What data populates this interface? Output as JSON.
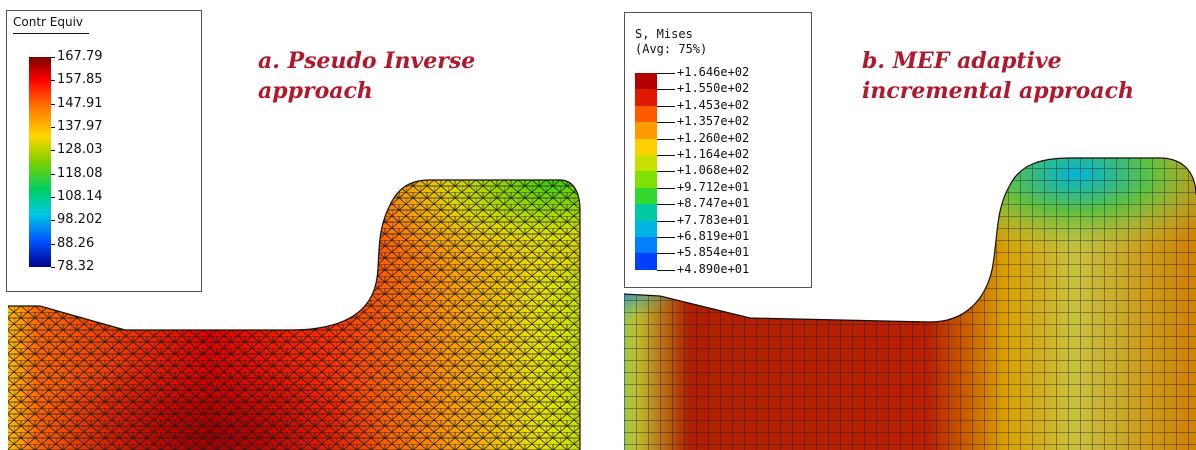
{
  "panel_a": {
    "caption_line1": "a. Pseudo Inverse",
    "caption_line2": "approach",
    "legend_title": "Contr Equiv",
    "legend_ticks": [
      "167.79",
      "157.85",
      "147.91",
      "137.97",
      "128.03",
      "118.08",
      "108.14",
      "98.202",
      "88.26",
      "78.32"
    ],
    "colormap": [
      "#8b0000",
      "#ff0000",
      "#ff7f00",
      "#ffd700",
      "#9acd32",
      "#00d000",
      "#00c8c8",
      "#0064ff",
      "#0000ff",
      "#00008b"
    ]
  },
  "panel_b": {
    "caption_line1": "b. MEF adaptive",
    "caption_line2": "incremental approach",
    "legend_title_line1": "S, Mises",
    "legend_title_line2": "(Avg: 75%)",
    "legend_ticks": [
      "+1.646e+02",
      "+1.550e+02",
      "+1.453e+02",
      "+1.357e+02",
      "+1.260e+02",
      "+1.164e+02",
      "+1.068e+02",
      "+9.712e+01",
      "+8.747e+01",
      "+7.783e+01",
      "+6.819e+01",
      "+5.854e+01",
      "+4.890e+01"
    ],
    "colormap": [
      "#b40000",
      "#e01a00",
      "#ff5a00",
      "#ff9a00",
      "#ffd000",
      "#c8e000",
      "#80e000",
      "#30d830",
      "#00c8a0",
      "#00b4e6",
      "#0080ff",
      "#0040ff",
      "#0000e6"
    ]
  }
}
